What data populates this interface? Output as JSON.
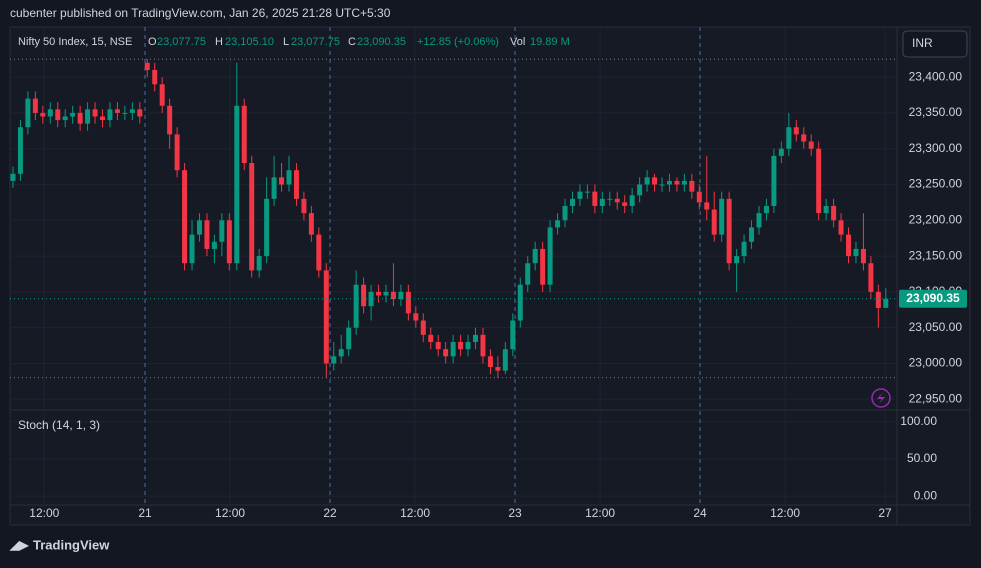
{
  "header": {
    "published": "cubenter published on TradingView.com, Jan 26, 2025 21:28 UTC+5:30",
    "symbol": "Nifty 50 Index, 15, NSE",
    "o_label": "O",
    "o": "23,077.75",
    "h_label": "H",
    "h": "23,105.10",
    "l_label": "L",
    "l": "23,077.75",
    "c_label": "C",
    "c": "23,090.35",
    "change": "+12.85 (+0.06%)",
    "vol_label": "Vol",
    "vol": "19.89 M",
    "currency": "INR",
    "last_price": "23,090.35"
  },
  "footer": {
    "brand": "TradingView"
  },
  "chart_data": {
    "type": "candlestick",
    "up_color": "#089981",
    "down_color": "#f23645",
    "xlim": [
      -0.4,
      118.5
    ],
    "xticks": [
      {
        "value": 4.2,
        "label": "12:00"
      },
      {
        "value": 17.7,
        "label": "21"
      },
      {
        "value": 29.1,
        "label": "12:00"
      },
      {
        "value": 42.5,
        "label": "22"
      },
      {
        "value": 53.9,
        "label": "12:00"
      },
      {
        "value": 67.3,
        "label": "23"
      },
      {
        "value": 78.7,
        "label": "12:00"
      },
      {
        "value": 92.1,
        "label": "24"
      },
      {
        "value": 103.5,
        "label": "12:00"
      },
      {
        "value": 116.9,
        "label": "27"
      }
    ],
    "ylim": [
      22935,
      23470
    ],
    "yticks": [
      {
        "value": 23400,
        "label": "23,400.00"
      },
      {
        "value": 23350,
        "label": "23,350.00"
      },
      {
        "value": 23300,
        "label": "23,300.00"
      },
      {
        "value": 23250,
        "label": "23,250.00"
      },
      {
        "value": 23200,
        "label": "23,200.00"
      },
      {
        "value": 23150,
        "label": "23,150.00"
      },
      {
        "value": 23100,
        "label": "23,100.00"
      },
      {
        "value": 23050,
        "label": "23,050.00"
      },
      {
        "value": 23000,
        "label": "23,000.00"
      },
      {
        "value": 22950,
        "label": "22,950.00"
      }
    ],
    "open": [
      23255,
      23265,
      23330,
      23370,
      23350,
      23345,
      23355,
      23340,
      23345,
      23350,
      23335,
      23355,
      23345,
      23340,
      23355,
      23350,
      23350,
      23355,
      23420,
      23410,
      23390,
      23360,
      23320,
      23270,
      23140,
      23180,
      23200,
      23160,
      23170,
      23200,
      23140,
      23360,
      23280,
      23130,
      23150,
      23230,
      23260,
      23250,
      23270,
      23230,
      23210,
      23180,
      23130,
      23000,
      23010,
      23020,
      23050,
      23110,
      23080,
      23100,
      23095,
      23100,
      23090,
      23100,
      23070,
      23060,
      23040,
      23030,
      23020,
      23010,
      23030,
      23020,
      23030,
      23040,
      23010,
      22995,
      22990,
      23020,
      23060,
      23110,
      23140,
      23160,
      23110,
      23190,
      23200,
      23220,
      23230,
      23240,
      23240,
      23220,
      23230,
      23230,
      23225,
      23220,
      23235,
      23250,
      23260,
      23250,
      23250,
      23255,
      23250,
      23255,
      23240,
      23225,
      23215,
      23180,
      23230,
      23140,
      23150,
      23170,
      23190,
      23210,
      23220,
      23290,
      23300,
      23330,
      23320,
      23310,
      23300,
      23210,
      23220,
      23200,
      23180,
      23150,
      23160,
      23140,
      23100,
      23077.75
    ],
    "high": [
      23275,
      23340,
      23380,
      23380,
      23360,
      23365,
      23365,
      23355,
      23360,
      23360,
      23365,
      23365,
      23355,
      23365,
      23365,
      23360,
      23365,
      23365,
      23425,
      23420,
      23400,
      23370,
      23330,
      23280,
      23200,
      23210,
      23210,
      23180,
      23210,
      23210,
      23420,
      23370,
      23290,
      23160,
      23260,
      23290,
      23280,
      23290,
      23280,
      23240,
      23220,
      23190,
      23140,
      23030,
      23040,
      23060,
      23130,
      23120,
      23110,
      23110,
      23110,
      23140,
      23110,
      23110,
      23080,
      23070,
      23050,
      23040,
      23030,
      23040,
      23040,
      23040,
      23050,
      23050,
      23020,
      23010,
      23030,
      23070,
      23120,
      23150,
      23170,
      23170,
      23200,
      23210,
      23230,
      23240,
      23250,
      23250,
      23250,
      23240,
      23240,
      23240,
      23235,
      23245,
      23260,
      23270,
      23265,
      23260,
      23265,
      23260,
      23265,
      23265,
      23250,
      23290,
      23240,
      23240,
      23240,
      23160,
      23180,
      23200,
      23220,
      23230,
      23300,
      23310,
      23350,
      23340,
      23330,
      23320,
      23310,
      23230,
      23230,
      23210,
      23190,
      23170,
      23210,
      23150,
      23110,
      23105.1
    ],
    "low": [
      23245,
      23255,
      23320,
      23340,
      23335,
      23335,
      23330,
      23330,
      23335,
      23325,
      23325,
      23335,
      23330,
      23330,
      23340,
      23340,
      23340,
      23335,
      23400,
      23380,
      23350,
      23300,
      23260,
      23130,
      23130,
      23170,
      23150,
      23140,
      23150,
      23130,
      23130,
      23270,
      23120,
      23120,
      23140,
      23220,
      23240,
      23240,
      23220,
      23200,
      23170,
      23120,
      22980,
      22990,
      23000,
      23010,
      23040,
      23070,
      23060,
      23085,
      23085,
      23080,
      23080,
      23060,
      23050,
      23030,
      23020,
      23010,
      23000,
      23000,
      23010,
      23010,
      23020,
      23000,
      22985,
      22980,
      22985,
      23010,
      23050,
      23100,
      23130,
      23100,
      23100,
      23180,
      23190,
      23210,
      23220,
      23230,
      23210,
      23210,
      23220,
      23215,
      23210,
      23210,
      23225,
      23240,
      23240,
      23240,
      23240,
      23240,
      23240,
      23230,
      23215,
      23200,
      23170,
      23170,
      23130,
      23100,
      23140,
      23160,
      23180,
      23200,
      23210,
      23280,
      23290,
      23310,
      23300,
      23290,
      23200,
      23200,
      23190,
      23170,
      23140,
      23140,
      23130,
      23090,
      23050,
      23077.75
    ],
    "close": [
      23265,
      23330,
      23370,
      23350,
      23345,
      23355,
      23340,
      23345,
      23350,
      23335,
      23355,
      23345,
      23340,
      23355,
      23350,
      23350,
      23355,
      23345,
      23410,
      23390,
      23360,
      23320,
      23270,
      23140,
      23180,
      23200,
      23160,
      23170,
      23200,
      23140,
      23360,
      23280,
      23130,
      23150,
      23230,
      23260,
      23250,
      23270,
      23230,
      23210,
      23180,
      23130,
      23000,
      23010,
      23020,
      23050,
      23110,
      23080,
      23100,
      23095,
      23100,
      23090,
      23100,
      23070,
      23060,
      23040,
      23030,
      23020,
      23010,
      23030,
      23020,
      23030,
      23040,
      23010,
      22995,
      22990,
      23020,
      23060,
      23110,
      23140,
      23160,
      23110,
      23190,
      23200,
      23220,
      23230,
      23240,
      23240,
      23220,
      23230,
      23230,
      23225,
      23220,
      23235,
      23250,
      23260,
      23250,
      23250,
      23255,
      23250,
      23255,
      23240,
      23225,
      23215,
      23180,
      23230,
      23140,
      23150,
      23170,
      23190,
      23210,
      23220,
      23290,
      23300,
      23330,
      23320,
      23310,
      23300,
      23210,
      23220,
      23200,
      23180,
      23150,
      23160,
      23140,
      23100,
      23077.5,
      23090.35
    ],
    "indicator": {
      "label": "Stoch (14, 1, 3)",
      "ylim": [
        -12,
        116
      ],
      "yticks": [
        {
          "value": 100,
          "label": "100.00"
        },
        {
          "value": 50,
          "label": "50.00"
        },
        {
          "value": 0,
          "label": "0.00"
        }
      ]
    }
  }
}
